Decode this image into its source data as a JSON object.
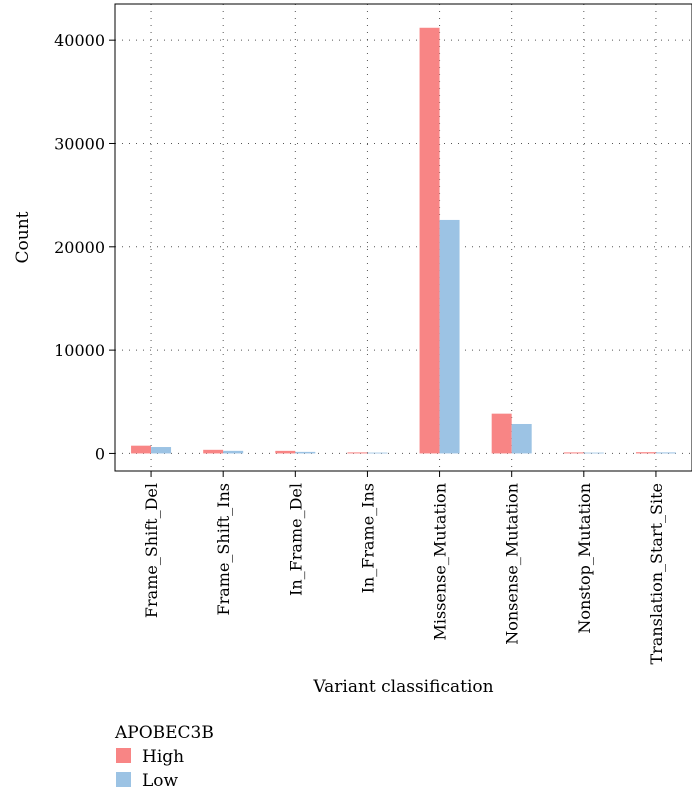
{
  "chart_data": {
    "type": "bar",
    "categories": [
      "Frame_Shift_Del",
      "Frame_Shift_Ins",
      "In_Frame_Del",
      "In_Frame_Ins",
      "Missense_Mutation",
      "Nonsense_Mutation",
      "Nonstop_Mutation",
      "Translation_Start_Site"
    ],
    "series": [
      {
        "name": "High",
        "color": "#f88585",
        "values": [
          750,
          350,
          250,
          100,
          41200,
          3850,
          100,
          120
        ]
      },
      {
        "name": "Low",
        "color": "#9cc3e4",
        "values": [
          620,
          250,
          150,
          80,
          22600,
          2850,
          80,
          100
        ]
      }
    ],
    "xlabel": "Variant classification",
    "ylabel": "Count",
    "ylim": [
      -1700,
      43500
    ],
    "yticks": [
      0,
      10000,
      20000,
      30000,
      40000
    ],
    "ytick_labels": [
      "0",
      "10000",
      "20000",
      "30000",
      "40000"
    ],
    "grid": true,
    "legend": {
      "title": "APOBEC3B",
      "placement": "bottom-left",
      "entries": [
        "High",
        "Low"
      ]
    }
  }
}
